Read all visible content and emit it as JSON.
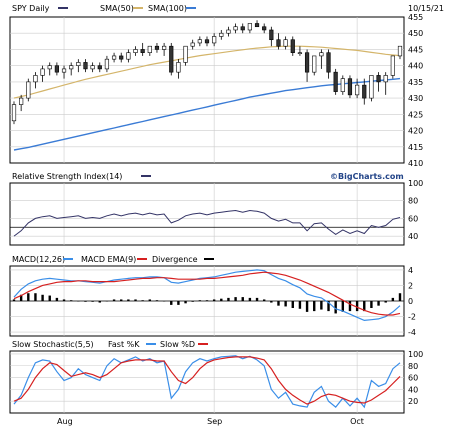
{
  "header": {
    "symbol_label": "SPY Daily",
    "sma50_label": "SMA(50)",
    "sma100_label": "SMA(100)",
    "date": "10/15/21"
  },
  "rsi": {
    "label": "Relative Strength Index(14)"
  },
  "brand": "©BigCharts.com",
  "macd": {
    "macd_label": "MACD(12,26)",
    "ema_label": "MACD EMA(9)",
    "div_label": "Divergence"
  },
  "stoch": {
    "label": "Slow Stochastic(5,5)",
    "fast_label": "Fast %K",
    "slow_label": "Slow %D"
  },
  "colors": {
    "sma50": "#d4b56a",
    "sma100": "#3a7bd5",
    "price": "#000000",
    "red": "#d62020",
    "blue": "#3a8ee8",
    "rsi": "#333366",
    "grid": "#cccccc"
  },
  "chart_data": [
    {
      "type": "candlestick",
      "title": "SPY Daily",
      "ylim": [
        410,
        455
      ],
      "y_ticks": [
        "455",
        "450",
        "445",
        "440",
        "435",
        "430",
        "425",
        "420",
        "415",
        "410"
      ],
      "x_ticks": [
        "Aug",
        "Sep",
        "Oct"
      ],
      "ohlc": [
        [
          423,
          429,
          422,
          428
        ],
        [
          428,
          431,
          426,
          430
        ],
        [
          430,
          436,
          429,
          435
        ],
        [
          435,
          438,
          433,
          437
        ],
        [
          437,
          440,
          435,
          439
        ],
        [
          439,
          441,
          437,
          440
        ],
        [
          440,
          441,
          437,
          438
        ],
        [
          438,
          440,
          436,
          439
        ],
        [
          439,
          441,
          437,
          440
        ],
        [
          440,
          442,
          438,
          441
        ],
        [
          441,
          442,
          438,
          439
        ],
        [
          439,
          441,
          438,
          440
        ],
        [
          440,
          441,
          438,
          439
        ],
        [
          439,
          443,
          438,
          442
        ],
        [
          442,
          444,
          441,
          443
        ],
        [
          443,
          444,
          441,
          442
        ],
        [
          442,
          445,
          441,
          444
        ],
        [
          444,
          446,
          443,
          445
        ],
        [
          445,
          447,
          443,
          444
        ],
        [
          444,
          446,
          443,
          446
        ],
        [
          446,
          447,
          444,
          445
        ],
        [
          445,
          447,
          443,
          446
        ],
        [
          446,
          447,
          437,
          438
        ],
        [
          438,
          442,
          436,
          441
        ],
        [
          441,
          446,
          440,
          446
        ],
        [
          446,
          448,
          445,
          447
        ],
        [
          447,
          449,
          446,
          448
        ],
        [
          448,
          449,
          446,
          447
        ],
        [
          447,
          450,
          446,
          449
        ],
        [
          449,
          451,
          448,
          450
        ],
        [
          450,
          452,
          449,
          451
        ],
        [
          451,
          453,
          450,
          452
        ],
        [
          452,
          453,
          450,
          451
        ],
        [
          451,
          453,
          450,
          453
        ],
        [
          453,
          454,
          452,
          452
        ],
        [
          452,
          453,
          450,
          451
        ],
        [
          451,
          452,
          446,
          448
        ],
        [
          448,
          450,
          445,
          446
        ],
        [
          446,
          449,
          445,
          448
        ],
        [
          448,
          449,
          443,
          444
        ],
        [
          444,
          446,
          443,
          444
        ],
        [
          444,
          445,
          435,
          438
        ],
        [
          438,
          443,
          437,
          443
        ],
        [
          443,
          445,
          439,
          444
        ],
        [
          444,
          445,
          436,
          438
        ],
        [
          438,
          439,
          431,
          432
        ],
        [
          432,
          437,
          431,
          436
        ],
        [
          436,
          437,
          430,
          431
        ],
        [
          431,
          436,
          430,
          434
        ],
        [
          434,
          436,
          428,
          430
        ],
        [
          430,
          437,
          429,
          437
        ],
        [
          437,
          438,
          432,
          435
        ],
        [
          435,
          438,
          431,
          437
        ],
        [
          437,
          443,
          436,
          443
        ],
        [
          443,
          446,
          442,
          446
        ]
      ],
      "series": [
        {
          "name": "SMA(50)",
          "values": [
            430,
            430.5,
            431,
            431.6,
            432.2,
            432.8,
            433.4,
            434,
            434.6,
            435.2,
            435.8,
            436.3,
            436.8,
            437.3,
            437.8,
            438.3,
            438.8,
            439.3,
            439.8,
            440.3,
            440.7,
            441.1,
            441.5,
            441.9,
            442.3,
            442.7,
            443.1,
            443.4,
            443.7,
            444,
            444.3,
            444.6,
            444.9,
            445.2,
            445.4,
            445.6,
            445.8,
            445.9,
            446,
            446,
            446,
            445.9,
            445.8,
            445.7,
            445.5,
            445.3,
            445.1,
            444.9,
            444.7,
            444.4,
            444.1,
            443.8,
            443.5,
            443.3,
            443.1
          ]
        },
        {
          "name": "SMA(100)",
          "values": [
            414,
            414.4,
            414.8,
            415.3,
            415.8,
            416.3,
            416.8,
            417.3,
            417.8,
            418.3,
            418.8,
            419.3,
            419.8,
            420.3,
            420.8,
            421.3,
            421.8,
            422.3,
            422.8,
            423.3,
            423.8,
            424.3,
            424.8,
            425.3,
            425.8,
            426.3,
            426.8,
            427.3,
            427.8,
            428.3,
            428.8,
            429.3,
            429.8,
            430.3,
            430.7,
            431.1,
            431.5,
            431.9,
            432.3,
            432.6,
            432.9,
            433.2,
            433.5,
            433.8,
            434,
            434.2,
            434.4,
            434.6,
            434.8,
            435,
            435.2,
            435.4,
            435.6,
            435.8,
            436
          ]
        }
      ]
    },
    {
      "type": "line",
      "title": "Relative Strength Index(14)",
      "ylim": [
        30,
        100
      ],
      "y_ticks": [
        "100",
        "80",
        "60",
        "40"
      ],
      "series": [
        {
          "name": "RSI(14)",
          "values": [
            40,
            46,
            55,
            60,
            62,
            63,
            60,
            61,
            62,
            63,
            60,
            61,
            60,
            63,
            65,
            63,
            65,
            66,
            64,
            66,
            64,
            65,
            55,
            58,
            63,
            65,
            66,
            64,
            66,
            67,
            68,
            69,
            67,
            69,
            68,
            66,
            60,
            57,
            59,
            55,
            55,
            46,
            54,
            55,
            48,
            42,
            47,
            43,
            46,
            43,
            52,
            50,
            52,
            59,
            61
          ]
        }
      ]
    },
    {
      "type": "line",
      "title": "MACD(12,26)",
      "ylim": [
        -4.5,
        4.5
      ],
      "y_ticks": [
        "4",
        "2",
        "0",
        "-2",
        "-4"
      ],
      "series": [
        {
          "name": "MACD(12,26)",
          "values": [
            0.5,
            1.5,
            2.2,
            2.6,
            2.8,
            2.9,
            2.8,
            2.7,
            2.6,
            2.6,
            2.5,
            2.4,
            2.3,
            2.5,
            2.7,
            2.8,
            2.9,
            3.0,
            3.0,
            3.1,
            3.1,
            3.0,
            2.4,
            2.3,
            2.5,
            2.7,
            2.9,
            3.0,
            3.1,
            3.3,
            3.5,
            3.7,
            3.8,
            3.9,
            4.0,
            3.9,
            3.4,
            2.9,
            2.6,
            2.1,
            1.7,
            0.9,
            0.6,
            0.4,
            -0.2,
            -1.0,
            -1.3,
            -1.7,
            -2.1,
            -2.5,
            -2.4,
            -2.3,
            -2.0,
            -1.4,
            -0.6
          ]
        },
        {
          "name": "MACD EMA(9)",
          "values": [
            0.3,
            0.7,
            1.2,
            1.6,
            2.0,
            2.2,
            2.4,
            2.5,
            2.5,
            2.6,
            2.6,
            2.5,
            2.5,
            2.5,
            2.5,
            2.6,
            2.7,
            2.8,
            2.9,
            2.9,
            3.0,
            3.0,
            2.9,
            2.8,
            2.8,
            2.8,
            2.8,
            2.9,
            2.9,
            3.0,
            3.1,
            3.2,
            3.3,
            3.5,
            3.6,
            3.7,
            3.6,
            3.5,
            3.3,
            3.0,
            2.7,
            2.3,
            1.9,
            1.5,
            1.1,
            0.6,
            0.1,
            -0.4,
            -0.8,
            -1.2,
            -1.5,
            -1.7,
            -1.8,
            -1.8,
            -1.6
          ]
        },
        {
          "name": "Divergence",
          "values": [
            0.2,
            0.8,
            1.0,
            1.0,
            0.8,
            0.7,
            0.4,
            0.2,
            0.1,
            0,
            -0.1,
            -0.1,
            -0.2,
            0,
            0.2,
            0.2,
            0.2,
            0.2,
            0.1,
            0.2,
            0.1,
            0,
            -0.5,
            -0.5,
            -0.3,
            -0.1,
            0.1,
            0.1,
            0.2,
            0.3,
            0.4,
            0.5,
            0.5,
            0.4,
            0.4,
            0.2,
            -0.2,
            -0.6,
            -0.7,
            -0.9,
            -1.0,
            -1.4,
            -1.3,
            -1.1,
            -1.3,
            -1.6,
            -1.4,
            -1.3,
            -1.3,
            -1.3,
            -0.9,
            -0.6,
            -0.2,
            0.4,
            1.0
          ]
        }
      ]
    },
    {
      "type": "line",
      "title": "Slow Stochastic(5,5)",
      "ylim": [
        0,
        105
      ],
      "y_ticks": [
        "100",
        "80",
        "60",
        "40",
        "20"
      ],
      "series": [
        {
          "name": "Fast %K",
          "values": [
            15,
            30,
            60,
            85,
            90,
            88,
            70,
            55,
            60,
            75,
            65,
            60,
            55,
            80,
            92,
            85,
            90,
            95,
            88,
            92,
            85,
            88,
            25,
            40,
            70,
            85,
            92,
            88,
            92,
            95,
            96,
            97,
            92,
            96,
            90,
            80,
            40,
            25,
            35,
            15,
            12,
            10,
            35,
            45,
            20,
            10,
            25,
            12,
            25,
            10,
            55,
            45,
            50,
            75,
            85
          ]
        },
        {
          "name": "Slow %D",
          "values": [
            20,
            25,
            40,
            60,
            75,
            85,
            82,
            72,
            62,
            65,
            68,
            65,
            60,
            65,
            75,
            85,
            88,
            90,
            90,
            90,
            88,
            88,
            70,
            55,
            50,
            60,
            75,
            85,
            90,
            92,
            94,
            95,
            95,
            95,
            93,
            90,
            75,
            55,
            40,
            30,
            22,
            15,
            20,
            28,
            32,
            30,
            25,
            20,
            18,
            17,
            22,
            30,
            38,
            50,
            62
          ]
        }
      ]
    }
  ]
}
